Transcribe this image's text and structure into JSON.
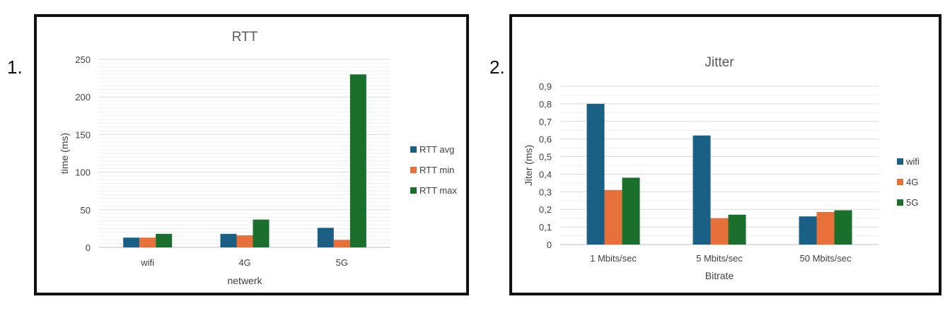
{
  "panel_labels": [
    "1.",
    "2."
  ],
  "chart_data": [
    {
      "type": "bar",
      "title": "RTT",
      "xlabel": "netwerk",
      "ylabel": "time (ms)",
      "categories": [
        "wifi",
        "4G",
        "5G"
      ],
      "ylim": [
        0,
        250
      ],
      "yticks": [
        "0",
        "50",
        "100",
        "150",
        "200",
        "250"
      ],
      "ytick_values": [
        0,
        50,
        100,
        150,
        200,
        250
      ],
      "grid": true,
      "legend_position": "right",
      "series": [
        {
          "name": "RTT avg",
          "values": [
            13,
            18,
            26
          ],
          "color": "#1a5f84"
        },
        {
          "name": "RTT min",
          "values": [
            13,
            16,
            10
          ],
          "color": "#e8703a"
        },
        {
          "name": "RTT max",
          "values": [
            18,
            37,
            230
          ],
          "color": "#1a6f2d"
        }
      ]
    },
    {
      "type": "bar",
      "title": "Jitter",
      "xlabel": "Bitrate",
      "ylabel": "Jiter (ms)",
      "categories": [
        "1 Mbits/sec",
        "5 Mbits/sec",
        "50 Mbits/sec"
      ],
      "ylim": [
        0,
        0.9
      ],
      "yticks": [
        "0",
        "0,1",
        "0,2",
        "0,3",
        "0,4",
        "0,5",
        "0,6",
        "0,7",
        "0,8",
        "0,9"
      ],
      "ytick_values": [
        0,
        0.1,
        0.2,
        0.3,
        0.4,
        0.5,
        0.6,
        0.7,
        0.8,
        0.9
      ],
      "grid": true,
      "legend_position": "right",
      "series": [
        {
          "name": "wifi",
          "values": [
            0.8,
            0.62,
            0.16
          ],
          "color": "#1a5f84"
        },
        {
          "name": "4G",
          "values": [
            0.31,
            0.15,
            0.185
          ],
          "color": "#e8703a"
        },
        {
          "name": "5G",
          "values": [
            0.38,
            0.17,
            0.195
          ],
          "color": "#1a6f2d"
        }
      ]
    }
  ]
}
